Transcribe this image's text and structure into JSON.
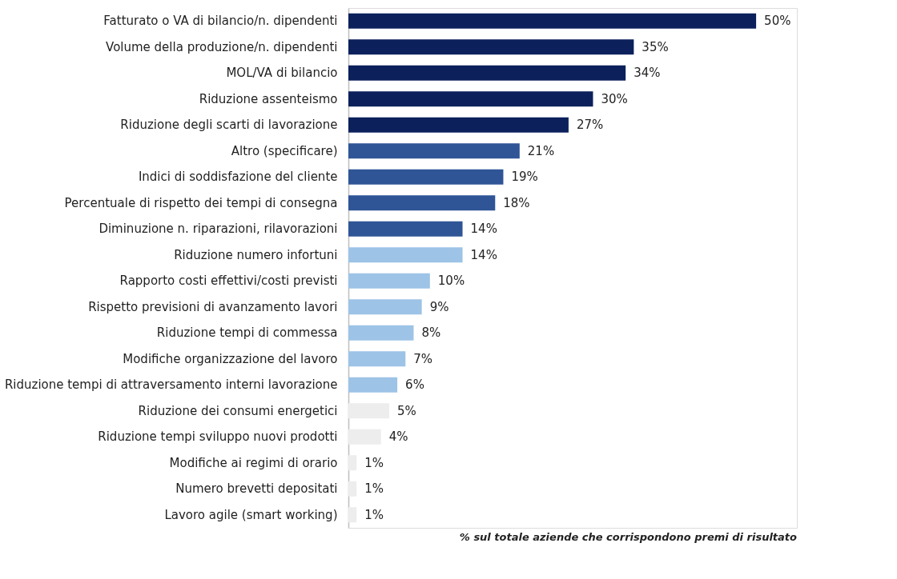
{
  "chart_data": {
    "type": "bar",
    "orientation": "horizontal",
    "value_labels": [
      "50%",
      "35%",
      "34%",
      "30%",
      "27%",
      "21%",
      "19%",
      "18%",
      "14%",
      "14%",
      "10%",
      "9%",
      "8%",
      "7%",
      "6%",
      "5%",
      "4%",
      "1%",
      "1%",
      "1%"
    ],
    "categories": [
      "Fatturato o VA di bilancio/n. dipendenti",
      "Volume della produzione/n. dipendenti",
      "MOL/VA di bilancio",
      "Riduzione assenteismo",
      "Riduzione degli scarti di lavorazione",
      "Altro (specificare)",
      "Indici di soddisfazione del cliente",
      "Percentuale di rispetto dei tempi di consegna",
      "Diminuzione n. riparazioni, rilavorazioni",
      "Riduzione numero infortuni",
      "Rapporto costi effettivi/costi previsti",
      "Rispetto previsioni di avanzamento lavori",
      "Riduzione tempi di commessa",
      "Modifiche organizzazione del lavoro",
      "Riduzione tempi di attraversamento interni lavorazione",
      "Riduzione dei consumi energetici",
      "Riduzione tempi sviluppo nuovi prodotti",
      "Modifiche ai regimi di orario",
      "Numero brevetti depositati",
      "Lavoro agile (smart working)"
    ],
    "values": [
      50,
      35,
      34,
      30,
      27,
      21,
      19,
      18,
      14,
      14,
      10,
      9,
      8,
      7,
      6,
      5,
      4,
      1,
      1,
      1
    ],
    "colors": [
      "#0c215c",
      "#0c215c",
      "#0c215c",
      "#0c215c",
      "#0c215c",
      "#2f5597",
      "#2f5597",
      "#2f5597",
      "#2f5597",
      "#9dc3e6",
      "#9dc3e6",
      "#9dc3e6",
      "#9dc3e6",
      "#9dc3e6",
      "#9dc3e6",
      "#ededed",
      "#ededed",
      "#ededed",
      "#ededed",
      "#ededed"
    ],
    "annotations": [
      "% sul totale aziende che corrispondono premi di risultato"
    ]
  }
}
